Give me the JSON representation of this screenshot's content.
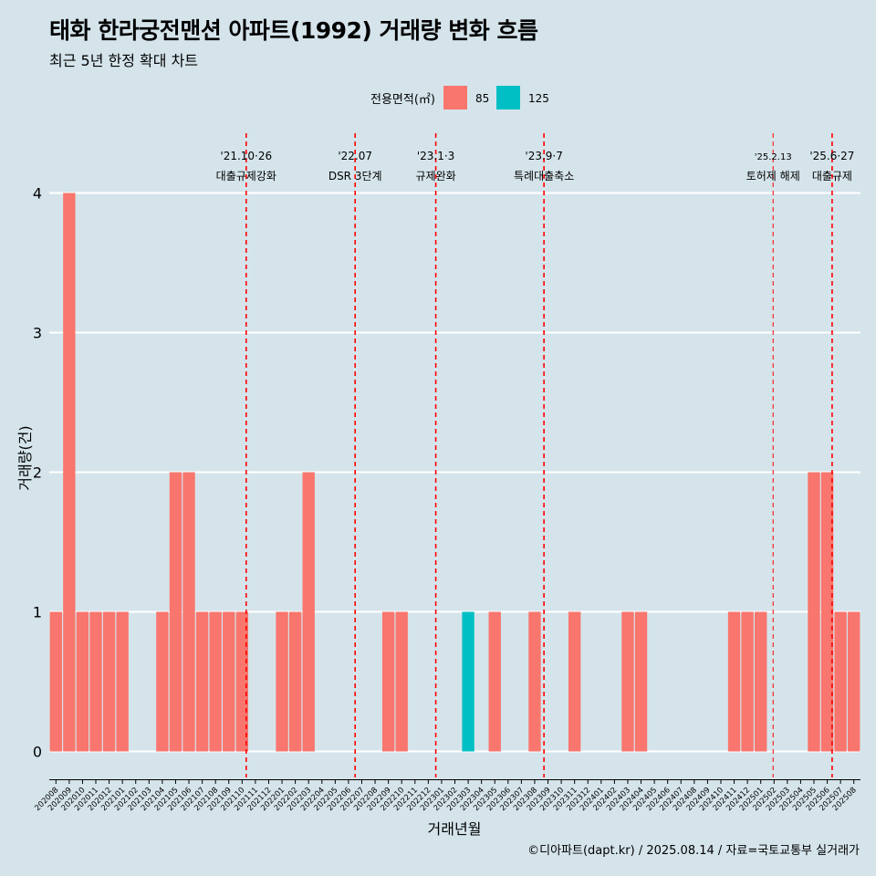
{
  "chart_data": {
    "type": "bar",
    "title": "태화 한라궁전맨션 아파트(1992) 거래량 변화 흐름",
    "subtitle": "최근 5년 한정 확대 차트",
    "xlabel": "거래년월",
    "ylabel": "거래량(건)",
    "ylim": [
      0,
      4
    ],
    "y_ticks": [
      0,
      1,
      2,
      3,
      4
    ],
    "grid": true,
    "legend": {
      "title": "전용면적(㎡)",
      "position": "top",
      "entries": [
        {
          "name": "85",
          "color": "#f8766d"
        },
        {
          "name": "125",
          "color": "#00bfc4"
        }
      ]
    },
    "categories": [
      "202008",
      "202009",
      "202010",
      "202011",
      "202012",
      "202101",
      "202102",
      "202103",
      "202104",
      "202105",
      "202106",
      "202107",
      "202108",
      "202109",
      "202110",
      "202111",
      "202112",
      "202201",
      "202202",
      "202203",
      "202204",
      "202205",
      "202206",
      "202207",
      "202208",
      "202209",
      "202210",
      "202211",
      "202212",
      "202301",
      "202302",
      "202303",
      "202304",
      "202305",
      "202306",
      "202307",
      "202308",
      "202309",
      "202310",
      "202311",
      "202312",
      "202401",
      "202402",
      "202403",
      "202404",
      "202405",
      "202406",
      "202407",
      "202408",
      "202409",
      "202410",
      "202411",
      "202412",
      "202501",
      "202502",
      "202503",
      "202504",
      "202505",
      "202506",
      "202507",
      "202508"
    ],
    "series": [
      {
        "name": "85",
        "color": "#f8766d",
        "values": [
          1,
          4,
          1,
          1,
          1,
          1,
          0,
          0,
          1,
          2,
          2,
          1,
          1,
          1,
          1,
          0,
          0,
          1,
          1,
          2,
          0,
          0,
          0,
          0,
          0,
          1,
          1,
          0,
          0,
          0,
          0,
          0,
          0,
          1,
          0,
          0,
          1,
          0,
          0,
          1,
          0,
          0,
          0,
          1,
          1,
          0,
          0,
          0,
          0,
          0,
          0,
          1,
          1,
          1,
          0,
          0,
          0,
          2,
          2,
          1,
          1
        ]
      },
      {
        "name": "125",
        "color": "#00bfc4",
        "values": [
          0,
          0,
          0,
          0,
          0,
          0,
          0,
          0,
          0,
          0,
          0,
          0,
          0,
          0,
          0,
          0,
          0,
          0,
          0,
          0,
          0,
          0,
          0,
          0,
          0,
          0,
          0,
          0,
          0,
          0,
          0,
          1,
          0,
          0,
          0,
          0,
          0,
          0,
          0,
          0,
          0,
          0,
          0,
          0,
          0,
          0,
          0,
          0,
          0,
          0,
          0,
          0,
          0,
          0,
          0,
          0,
          0,
          0,
          0,
          0,
          0
        ]
      }
    ],
    "annotations": [
      {
        "date": "2021-10-26",
        "line1": "'21.10·26",
        "line2": "대출규제강화"
      },
      {
        "date": "2022-07-01",
        "line1": "'22.07",
        "line2": "DSR 3단계"
      },
      {
        "date": "2023-01-03",
        "line1": "'23.1·3",
        "line2": "규제완화"
      },
      {
        "date": "2023-09-07",
        "line1": "'23.9·7",
        "line2": "특례대출축소"
      },
      {
        "date": "2025-02-13",
        "line1": "'25.2.13",
        "line2": "토허제 해제"
      },
      {
        "date": "2025-06-27",
        "line1": "'25.6·27",
        "line2": "대출규제"
      }
    ],
    "annotation_color": "#ff0000"
  },
  "caption": "©디아파트(dapt.kr) / 2025.08.14 / 자료=국토교통부 실거래가"
}
